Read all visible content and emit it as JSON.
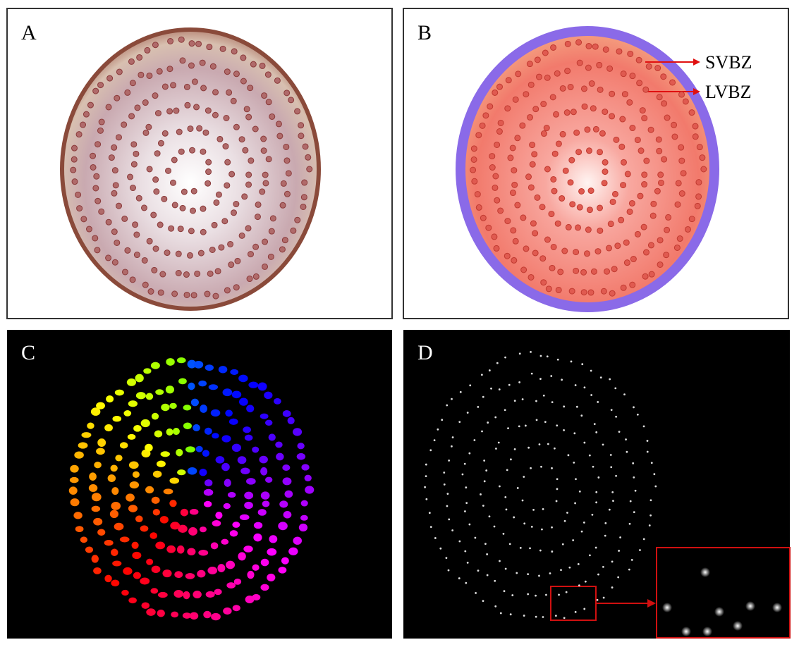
{
  "panels": [
    {
      "label": "A"
    },
    {
      "label": "B"
    },
    {
      "label": "C"
    },
    {
      "label": "D"
    }
  ],
  "annotations": [
    "SVBZ",
    "LVBZ"
  ]
}
